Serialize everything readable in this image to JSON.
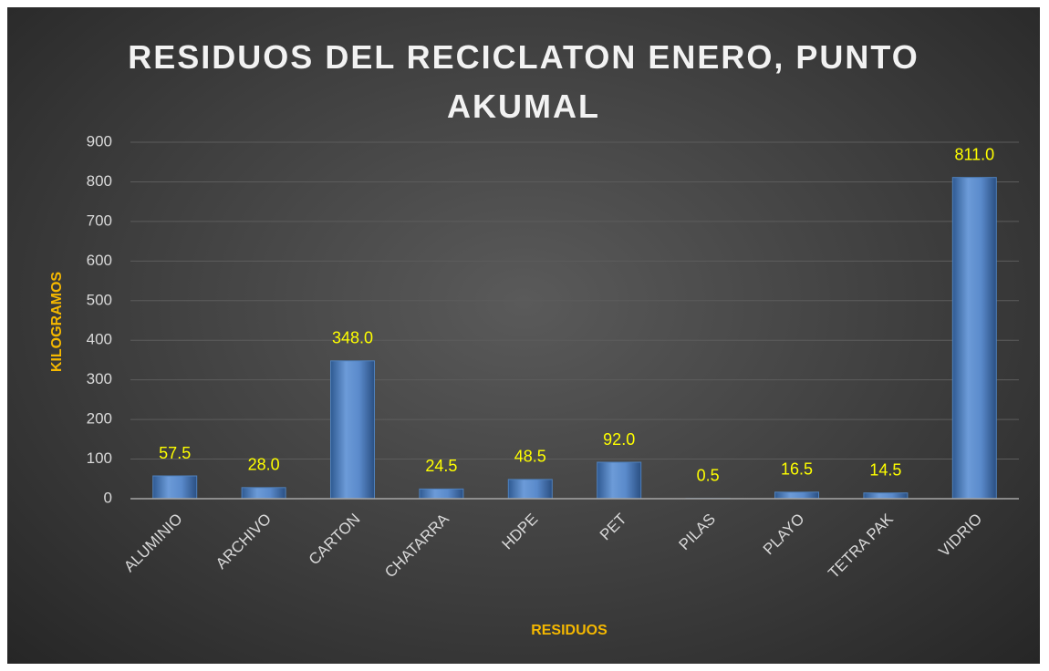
{
  "chart_data": {
    "type": "bar",
    "title": "RESIDUOS DEL RECICLATON ENERO, PUNTO AKUMAL",
    "x_label": "RESIDUOS",
    "y_label": "KILOGRAMOS",
    "categories": [
      "ALUMINIO",
      "ARCHIVO",
      "CARTON",
      "CHATARRA",
      "HDPE",
      "PET",
      "PILAS",
      "PLAYO",
      "TETRA PAK",
      "VIDRIO"
    ],
    "values": [
      57.5,
      28.0,
      348.0,
      24.5,
      48.5,
      92.0,
      0.5,
      16.5,
      14.5,
      811.0
    ],
    "value_labels": [
      "57.5",
      "28.0",
      "348.0",
      "24.5",
      "48.5",
      "92.0",
      "0.5",
      "16.5",
      "14.5",
      "811.0"
    ],
    "color": "#4f81bd",
    "ylim": [
      0,
      900
    ],
    "yticks": [
      0,
      100,
      200,
      300,
      400,
      500,
      600,
      700,
      800,
      900
    ],
    "grid": true
  }
}
